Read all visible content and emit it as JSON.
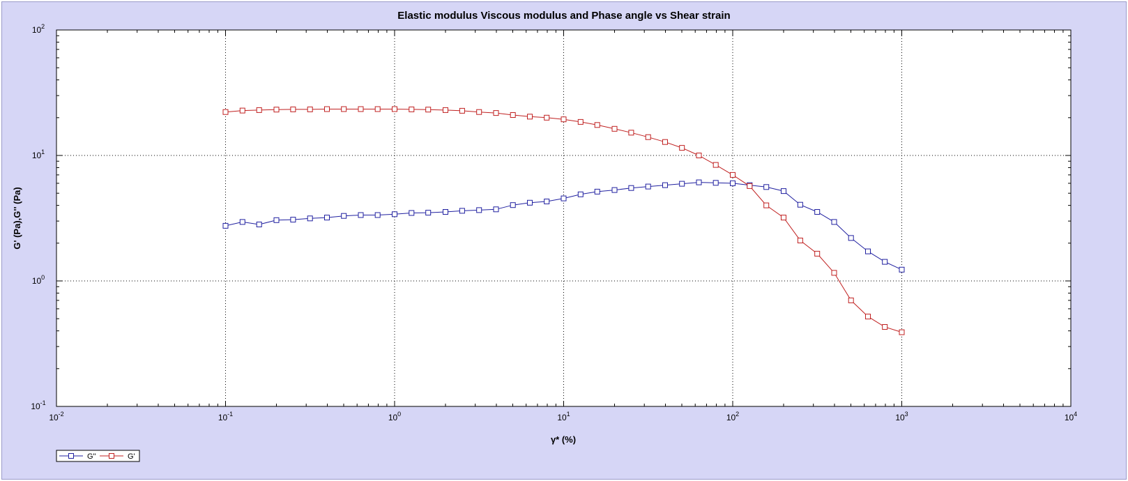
{
  "chart_data": {
    "type": "line",
    "title": "Elastic modulus Viscous modulus and Phase angle vs Shear strain",
    "xlabel": "γ* (%)",
    "ylabel": "G' (Pa),G'' (Pa)",
    "xscale": "log",
    "yscale": "log",
    "xlim": [
      0.01,
      10000
    ],
    "ylim": [
      0.1,
      100
    ],
    "grid": true,
    "legend_position": "bottom-left",
    "x_ticks": [
      {
        "base": "10",
        "exp": "-2",
        "value": 0.01
      },
      {
        "base": "10",
        "exp": "-1",
        "value": 0.1
      },
      {
        "base": "10",
        "exp": "0",
        "value": 1
      },
      {
        "base": "10",
        "exp": "1",
        "value": 10
      },
      {
        "base": "10",
        "exp": "2",
        "value": 100
      },
      {
        "base": "10",
        "exp": "3",
        "value": 1000
      },
      {
        "base": "10",
        "exp": "4",
        "value": 10000
      }
    ],
    "y_ticks": [
      {
        "base": "10",
        "exp": "-1",
        "value": 0.1
      },
      {
        "base": "10",
        "exp": "0",
        "value": 1
      },
      {
        "base": "10",
        "exp": "1",
        "value": 10
      },
      {
        "base": "10",
        "exp": "2",
        "value": 100
      }
    ],
    "x": [
      0.1,
      0.126,
      0.158,
      0.2,
      0.251,
      0.316,
      0.398,
      0.501,
      0.631,
      0.794,
      1,
      1.26,
      1.58,
      2,
      2.51,
      3.16,
      3.98,
      5.01,
      6.31,
      7.94,
      10,
      12.6,
      15.8,
      20,
      25.1,
      31.6,
      39.8,
      50.1,
      63.1,
      79.4,
      100,
      126,
      158,
      200,
      251,
      316,
      398,
      501,
      631,
      794,
      1000
    ],
    "series": [
      {
        "name": "G''",
        "color": "#2020a0",
        "values": [
          2.75,
          2.95,
          2.82,
          3.05,
          3.08,
          3.15,
          3.2,
          3.3,
          3.35,
          3.35,
          3.4,
          3.48,
          3.5,
          3.55,
          3.62,
          3.67,
          3.72,
          4.02,
          4.2,
          4.3,
          4.55,
          4.9,
          5.15,
          5.3,
          5.5,
          5.65,
          5.8,
          5.95,
          6.1,
          6.05,
          6.0,
          5.8,
          5.6,
          5.2,
          4.05,
          3.55,
          2.95,
          2.2,
          1.72,
          1.42,
          1.23
        ]
      },
      {
        "name": "G'",
        "color": "#c02020",
        "values": [
          22.2,
          22.8,
          23.0,
          23.2,
          23.3,
          23.3,
          23.4,
          23.4,
          23.4,
          23.4,
          23.4,
          23.3,
          23.2,
          23.0,
          22.7,
          22.2,
          21.8,
          21.0,
          20.4,
          20.0,
          19.4,
          18.5,
          17.5,
          16.3,
          15.2,
          14.0,
          12.8,
          11.5,
          10.0,
          8.4,
          7.0,
          5.7,
          4.0,
          3.2,
          2.1,
          1.65,
          1.16,
          0.7,
          0.52,
          0.43,
          0.39
        ]
      }
    ]
  }
}
